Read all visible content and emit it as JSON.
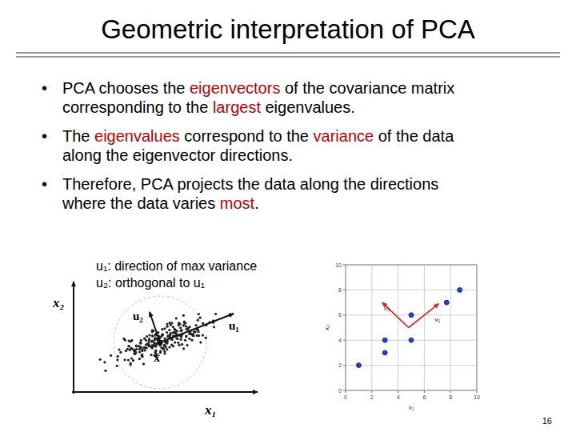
{
  "title": "Geometric interpretation of PCA",
  "bullet_mark": "•",
  "bullets": [
    [
      [
        {
          "text": "PCA chooses the "
        },
        {
          "text": "eigenvectors",
          "color": "#c00000"
        },
        {
          "text": " of the covariance matrix"
        }
      ],
      [
        {
          "text": "corresponding to the "
        },
        {
          "text": "largest",
          "color": "#c00000"
        },
        {
          "text": " eigenvalues."
        }
      ]
    ],
    [
      [
        {
          "text": "The "
        },
        {
          "text": "eigenvalues",
          "color": "#c00000"
        },
        {
          "text": " correspond to the "
        },
        {
          "text": "variance",
          "color": "#c00000"
        },
        {
          "text": " of the data"
        }
      ],
      [
        {
          "text": "along the eigenvector directions."
        }
      ]
    ],
    [
      [
        {
          "text": "Therefore, PCA projects the data along the directions"
        }
      ],
      [
        {
          "text": "where the data varies "
        },
        {
          "text": "most",
          "color": "#c00000"
        },
        {
          "text": "."
        }
      ]
    ]
  ],
  "caption": [
    "u₁: direction of max variance",
    "u₂: orthogonal to u₁"
  ],
  "figure": {
    "x_axis": "x₁",
    "y_axis": "x₂",
    "u1": "u₁",
    "u2": "u₂",
    "mean": "x̄"
  },
  "chart_data": {
    "type": "scatter",
    "x": [
      1,
      3,
      3,
      5,
      5,
      7.7,
      8.7
    ],
    "values": [
      2,
      3,
      4,
      4,
      6,
      7,
      8
    ],
    "xlim": [
      0,
      10
    ],
    "ylim": [
      0,
      10
    ],
    "xticks": [
      0,
      2,
      4,
      6,
      8,
      10
    ],
    "yticks": [
      0,
      2,
      4,
      6,
      8,
      10
    ],
    "x_label": "x₁",
    "y_label": "x₂",
    "grid": true,
    "color": "#1f3fd6",
    "marker": "circle",
    "vectors": [
      {
        "name": "v₁",
        "start": [
          4.8,
          5
        ],
        "end": [
          7.1,
          6.9
        ],
        "color": "#e02020"
      },
      {
        "name": "v₂",
        "start": [
          4.8,
          5
        ],
        "end": [
          2.8,
          7
        ],
        "color": "#e02020"
      }
    ]
  },
  "slide_number": "16"
}
